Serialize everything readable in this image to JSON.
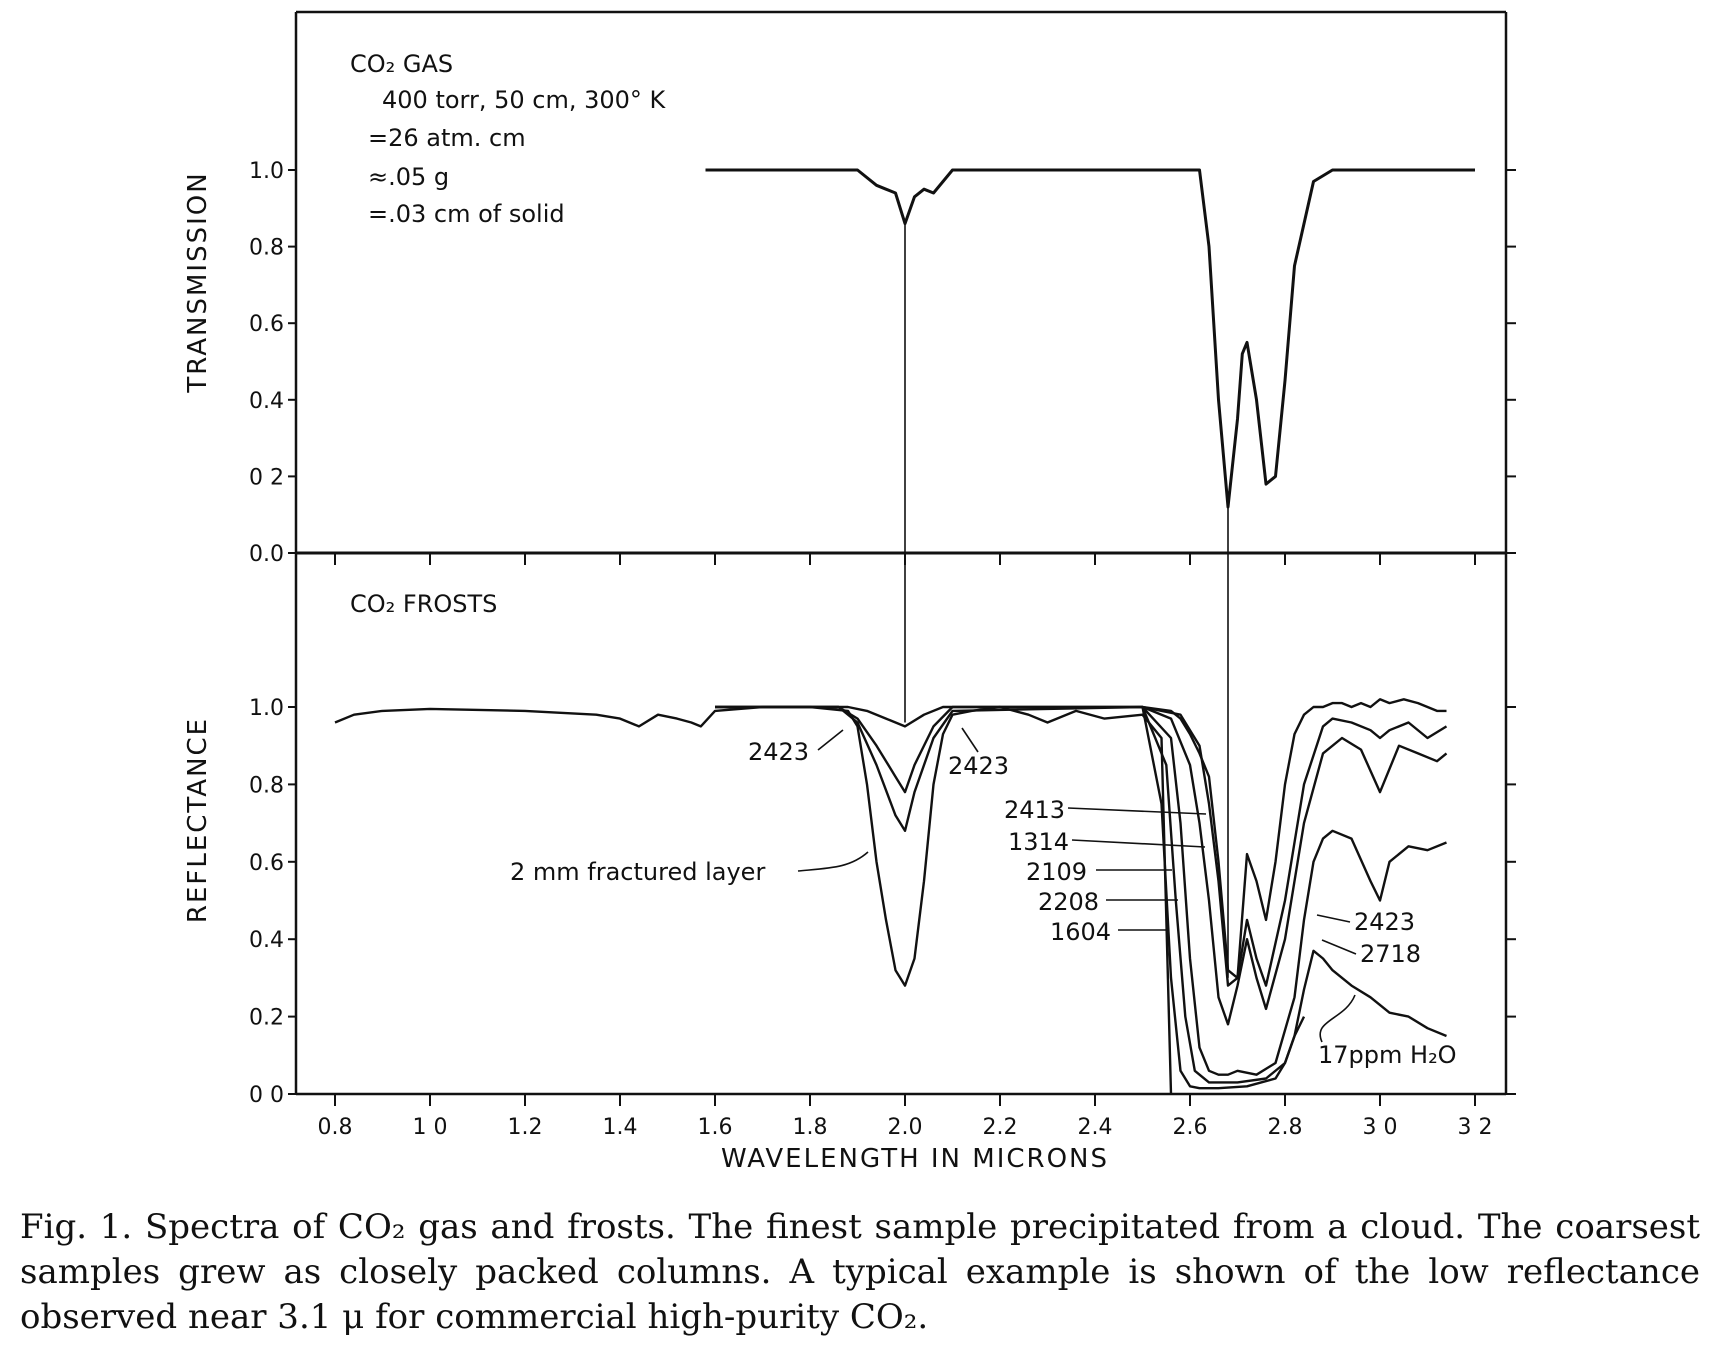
{
  "chart_data": [
    {
      "type": "line",
      "ylabel": "TRANSMISSION",
      "xlabel": "",
      "xlim": [
        0.8,
        3.2
      ],
      "ylim": [
        0.0,
        1.0
      ],
      "y_ticks": [
        "1.0",
        "0.8",
        "0.6",
        "0.4",
        "0 2",
        "0.0"
      ],
      "annotation": {
        "title": "CO₂ GAS",
        "lines": [
          "400 torr, 50 cm, 300° K",
          "=26 atm. cm",
          "≈.05 g",
          "=.03 cm of solid"
        ]
      },
      "series": [
        {
          "x": [
            1.58,
            1.9,
            1.94,
            1.96,
            1.98,
            2.0,
            2.02,
            2.04,
            2.06,
            2.1,
            2.3,
            2.5,
            2.62,
            2.64,
            2.66,
            2.68,
            2.7,
            2.71,
            2.72,
            2.74,
            2.76,
            2.78,
            2.8,
            2.82,
            2.86,
            2.9,
            3.2
          ],
          "y": [
            1.0,
            1.0,
            0.96,
            0.95,
            0.94,
            0.86,
            0.93,
            0.95,
            0.94,
            1.0,
            1.0,
            1.0,
            1.0,
            0.8,
            0.4,
            0.12,
            0.35,
            0.52,
            0.55,
            0.4,
            0.18,
            0.2,
            0.45,
            0.75,
            0.97,
            1.0,
            1.0
          ]
        }
      ]
    },
    {
      "type": "line",
      "ylabel": "REFLECTANCE",
      "xlabel": "WAVELENGTH IN MICRONS",
      "xlim": [
        0.8,
        3.2
      ],
      "ylim": [
        0.0,
        1.0
      ],
      "x_ticks": [
        "0.8",
        "1 0",
        "1.2",
        "1.4",
        "1.6",
        "1.8",
        "2.0",
        "2.2",
        "2.4",
        "2.6",
        "2.8",
        "3 0",
        "3 2"
      ],
      "y_ticks": [
        "1.0",
        "0.8",
        "0.6",
        "0.4",
        "0.2",
        "0 0"
      ],
      "annotation": {
        "title": "CO₂ FROSTS"
      },
      "labels": [
        "2423",
        "2423",
        "2 mm fractured layer",
        "2413",
        "1314",
        "2109",
        "2208",
        "1604",
        "2423",
        "2718",
        "17ppm H₂O"
      ],
      "series": [
        {
          "name": "2 mm fractured layer",
          "x": [
            0.8,
            0.84,
            0.9,
            1.0,
            1.2,
            1.35,
            1.4,
            1.44,
            1.48,
            1.52,
            1.55,
            1.57,
            1.6,
            1.7,
            1.8,
            1.88,
            1.9,
            1.92,
            1.94,
            1.96,
            1.98,
            2.0,
            2.02,
            2.04,
            2.06,
            2.08,
            2.1,
            2.14,
            2.2,
            2.26,
            2.3,
            2.36,
            2.42,
            2.5,
            2.54,
            2.56
          ],
          "y": [
            0.96,
            0.98,
            0.99,
            0.995,
            0.99,
            0.98,
            0.97,
            0.95,
            0.98,
            0.97,
            0.96,
            0.95,
            0.99,
            1.0,
            1.0,
            0.99,
            0.95,
            0.8,
            0.6,
            0.45,
            0.32,
            0.28,
            0.35,
            0.55,
            0.8,
            0.93,
            0.98,
            0.99,
            1.0,
            0.98,
            0.96,
            0.99,
            0.97,
            0.98,
            0.92,
            0.0
          ]
        },
        {
          "name": "2423",
          "x": [
            1.6,
            1.88,
            1.92,
            1.96,
            2.0,
            2.04,
            2.08,
            2.12,
            2.5,
            2.56,
            2.58,
            2.6,
            2.62,
            2.64,
            2.66,
            2.68,
            2.7,
            2.72,
            2.74,
            2.76,
            2.78,
            2.8,
            2.82,
            2.84,
            2.86,
            2.88,
            2.9,
            2.92,
            2.94,
            2.96,
            2.98,
            3.0,
            3.02,
            3.05,
            3.08,
            3.1,
            3.12,
            3.14
          ],
          "y": [
            1.0,
            1.0,
            0.99,
            0.97,
            0.95,
            0.98,
            1.0,
            1.0,
            1.0,
            0.99,
            0.97,
            0.93,
            0.88,
            0.82,
            0.6,
            0.32,
            0.3,
            0.62,
            0.55,
            0.45,
            0.6,
            0.8,
            0.93,
            0.98,
            1.0,
            1.0,
            1.01,
            1.01,
            1.0,
            1.01,
            1.0,
            1.02,
            1.01,
            1.02,
            1.01,
            1.0,
            0.99,
            0.99
          ]
        },
        {
          "name": "2413",
          "x": [
            1.6,
            1.86,
            1.9,
            1.94,
            1.98,
            2.0,
            2.02,
            2.06,
            2.1,
            2.5,
            2.58,
            2.62,
            2.64,
            2.66,
            2.68,
            2.7,
            2.72,
            2.74,
            2.76,
            2.8,
            2.84,
            2.88,
            2.9,
            2.94,
            2.98,
            3.0,
            3.02,
            3.06,
            3.1,
            3.14
          ],
          "y": [
            1.0,
            1.0,
            0.97,
            0.9,
            0.82,
            0.78,
            0.85,
            0.95,
            1.0,
            1.0,
            0.98,
            0.9,
            0.75,
            0.55,
            0.28,
            0.3,
            0.45,
            0.35,
            0.28,
            0.5,
            0.8,
            0.95,
            0.97,
            0.96,
            0.94,
            0.92,
            0.94,
            0.96,
            0.92,
            0.95
          ]
        },
        {
          "name": "1314",
          "x": [
            1.6,
            1.86,
            1.9,
            1.94,
            1.98,
            2.0,
            2.02,
            2.06,
            2.1,
            2.5,
            2.56,
            2.6,
            2.62,
            2.64,
            2.66,
            2.68,
            2.7,
            2.72,
            2.74,
            2.76,
            2.8,
            2.84,
            2.88,
            2.92,
            2.96,
            3.0,
            3.04,
            3.08,
            3.12,
            3.14
          ],
          "y": [
            1.0,
            1.0,
            0.96,
            0.85,
            0.72,
            0.68,
            0.78,
            0.92,
            0.99,
            1.0,
            0.97,
            0.85,
            0.7,
            0.5,
            0.25,
            0.18,
            0.28,
            0.4,
            0.3,
            0.22,
            0.4,
            0.7,
            0.88,
            0.92,
            0.89,
            0.78,
            0.9,
            0.88,
            0.86,
            0.88
          ]
        },
        {
          "name": "2109",
          "x": [
            2.5,
            2.56,
            2.58,
            2.6,
            2.62,
            2.64,
            2.66,
            2.68,
            2.7,
            2.74,
            2.78,
            2.82,
            2.84,
            2.86,
            2.88,
            2.9,
            2.94,
            2.98,
            3.0,
            3.02,
            3.06,
            3.1,
            3.14
          ],
          "y": [
            1.0,
            0.92,
            0.7,
            0.35,
            0.12,
            0.06,
            0.05,
            0.05,
            0.06,
            0.05,
            0.08,
            0.25,
            0.45,
            0.6,
            0.66,
            0.68,
            0.66,
            0.55,
            0.5,
            0.6,
            0.64,
            0.63,
            0.65
          ]
        },
        {
          "name": "2208",
          "x": [
            2.5,
            2.55,
            2.57,
            2.59,
            2.61,
            2.64,
            2.7,
            2.76,
            2.8,
            2.82,
            2.84,
            2.86,
            2.88,
            2.9,
            2.94,
            2.98,
            3.02,
            3.06,
            3.1,
            3.14
          ],
          "y": [
            1.0,
            0.85,
            0.5,
            0.2,
            0.06,
            0.03,
            0.03,
            0.04,
            0.08,
            0.15,
            0.27,
            0.37,
            0.35,
            0.32,
            0.28,
            0.25,
            0.21,
            0.2,
            0.17,
            0.15
          ]
        },
        {
          "name": "1604",
          "x": [
            2.5,
            2.54,
            2.56,
            2.58,
            2.6,
            2.62,
            2.66,
            2.72,
            2.78,
            2.8,
            2.82,
            2.84
          ],
          "y": [
            1.0,
            0.75,
            0.3,
            0.06,
            0.02,
            0.015,
            0.015,
            0.02,
            0.04,
            0.08,
            0.15,
            0.2
          ]
        }
      ]
    }
  ],
  "caption": "Fig. 1.  Spectra of CO₂ gas and frosts. The finest sample precipitated from a cloud. The coarsest samples grew as closely packed columns. A typical example is shown of the low reflectance observed near 3.1 μ for commercial high-purity CO₂."
}
